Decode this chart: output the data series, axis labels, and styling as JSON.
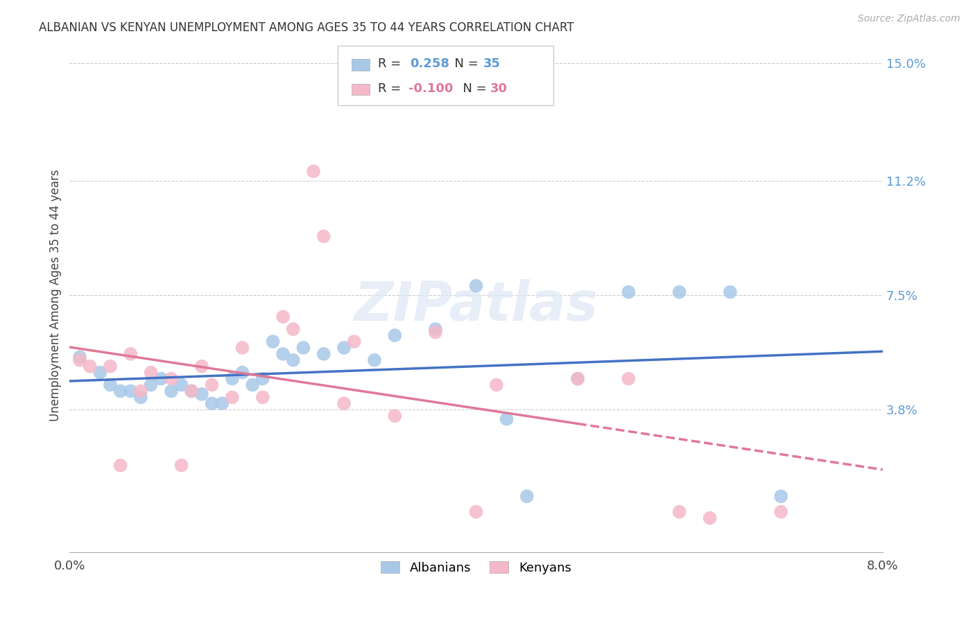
{
  "title": "ALBANIAN VS KENYAN UNEMPLOYMENT AMONG AGES 35 TO 44 YEARS CORRELATION CHART",
  "source": "Source: ZipAtlas.com",
  "ylabel": "Unemployment Among Ages 35 to 44 years",
  "xlim": [
    0.0,
    0.08
  ],
  "ylim": [
    -0.008,
    0.158
  ],
  "ytick_positions": [
    0.038,
    0.075,
    0.112,
    0.15
  ],
  "ytick_labels": [
    "3.8%",
    "7.5%",
    "11.2%",
    "15.0%"
  ],
  "albanians_R": "0.258",
  "albanians_N": "35",
  "kenyans_R": "-0.100",
  "kenyans_N": "30",
  "albanian_color": "#a8c8e8",
  "kenyan_color": "#f5b8c8",
  "albanian_line_color": "#4472c4",
  "kenyan_line_color": "#e07898",
  "kenyan_line_dash_start": 0.05,
  "watermark_text": "ZIPatlas",
  "albanian_x": [
    0.001,
    0.003,
    0.004,
    0.005,
    0.006,
    0.007,
    0.008,
    0.009,
    0.01,
    0.011,
    0.012,
    0.013,
    0.014,
    0.015,
    0.016,
    0.017,
    0.018,
    0.019,
    0.02,
    0.021,
    0.022,
    0.023,
    0.025,
    0.027,
    0.03,
    0.032,
    0.036,
    0.04,
    0.043,
    0.045,
    0.05,
    0.055,
    0.06,
    0.065,
    0.07
  ],
  "albanian_y": [
    0.055,
    0.05,
    0.046,
    0.044,
    0.044,
    0.042,
    0.046,
    0.048,
    0.044,
    0.046,
    0.044,
    0.043,
    0.04,
    0.04,
    0.048,
    0.05,
    0.046,
    0.048,
    0.06,
    0.056,
    0.054,
    0.058,
    0.056,
    0.058,
    0.054,
    0.062,
    0.064,
    0.078,
    0.035,
    0.01,
    0.048,
    0.076,
    0.076,
    0.076,
    0.01
  ],
  "kenyan_x": [
    0.001,
    0.002,
    0.004,
    0.005,
    0.006,
    0.007,
    0.008,
    0.01,
    0.011,
    0.012,
    0.013,
    0.014,
    0.016,
    0.017,
    0.019,
    0.021,
    0.022,
    0.024,
    0.025,
    0.027,
    0.028,
    0.032,
    0.036,
    0.04,
    0.042,
    0.05,
    0.055,
    0.06,
    0.063,
    0.07
  ],
  "kenyan_y": [
    0.054,
    0.052,
    0.052,
    0.02,
    0.056,
    0.044,
    0.05,
    0.048,
    0.02,
    0.044,
    0.052,
    0.046,
    0.042,
    0.058,
    0.042,
    0.068,
    0.064,
    0.115,
    0.094,
    0.04,
    0.06,
    0.036,
    0.063,
    0.005,
    0.046,
    0.048,
    0.048,
    0.005,
    0.003,
    0.005
  ]
}
